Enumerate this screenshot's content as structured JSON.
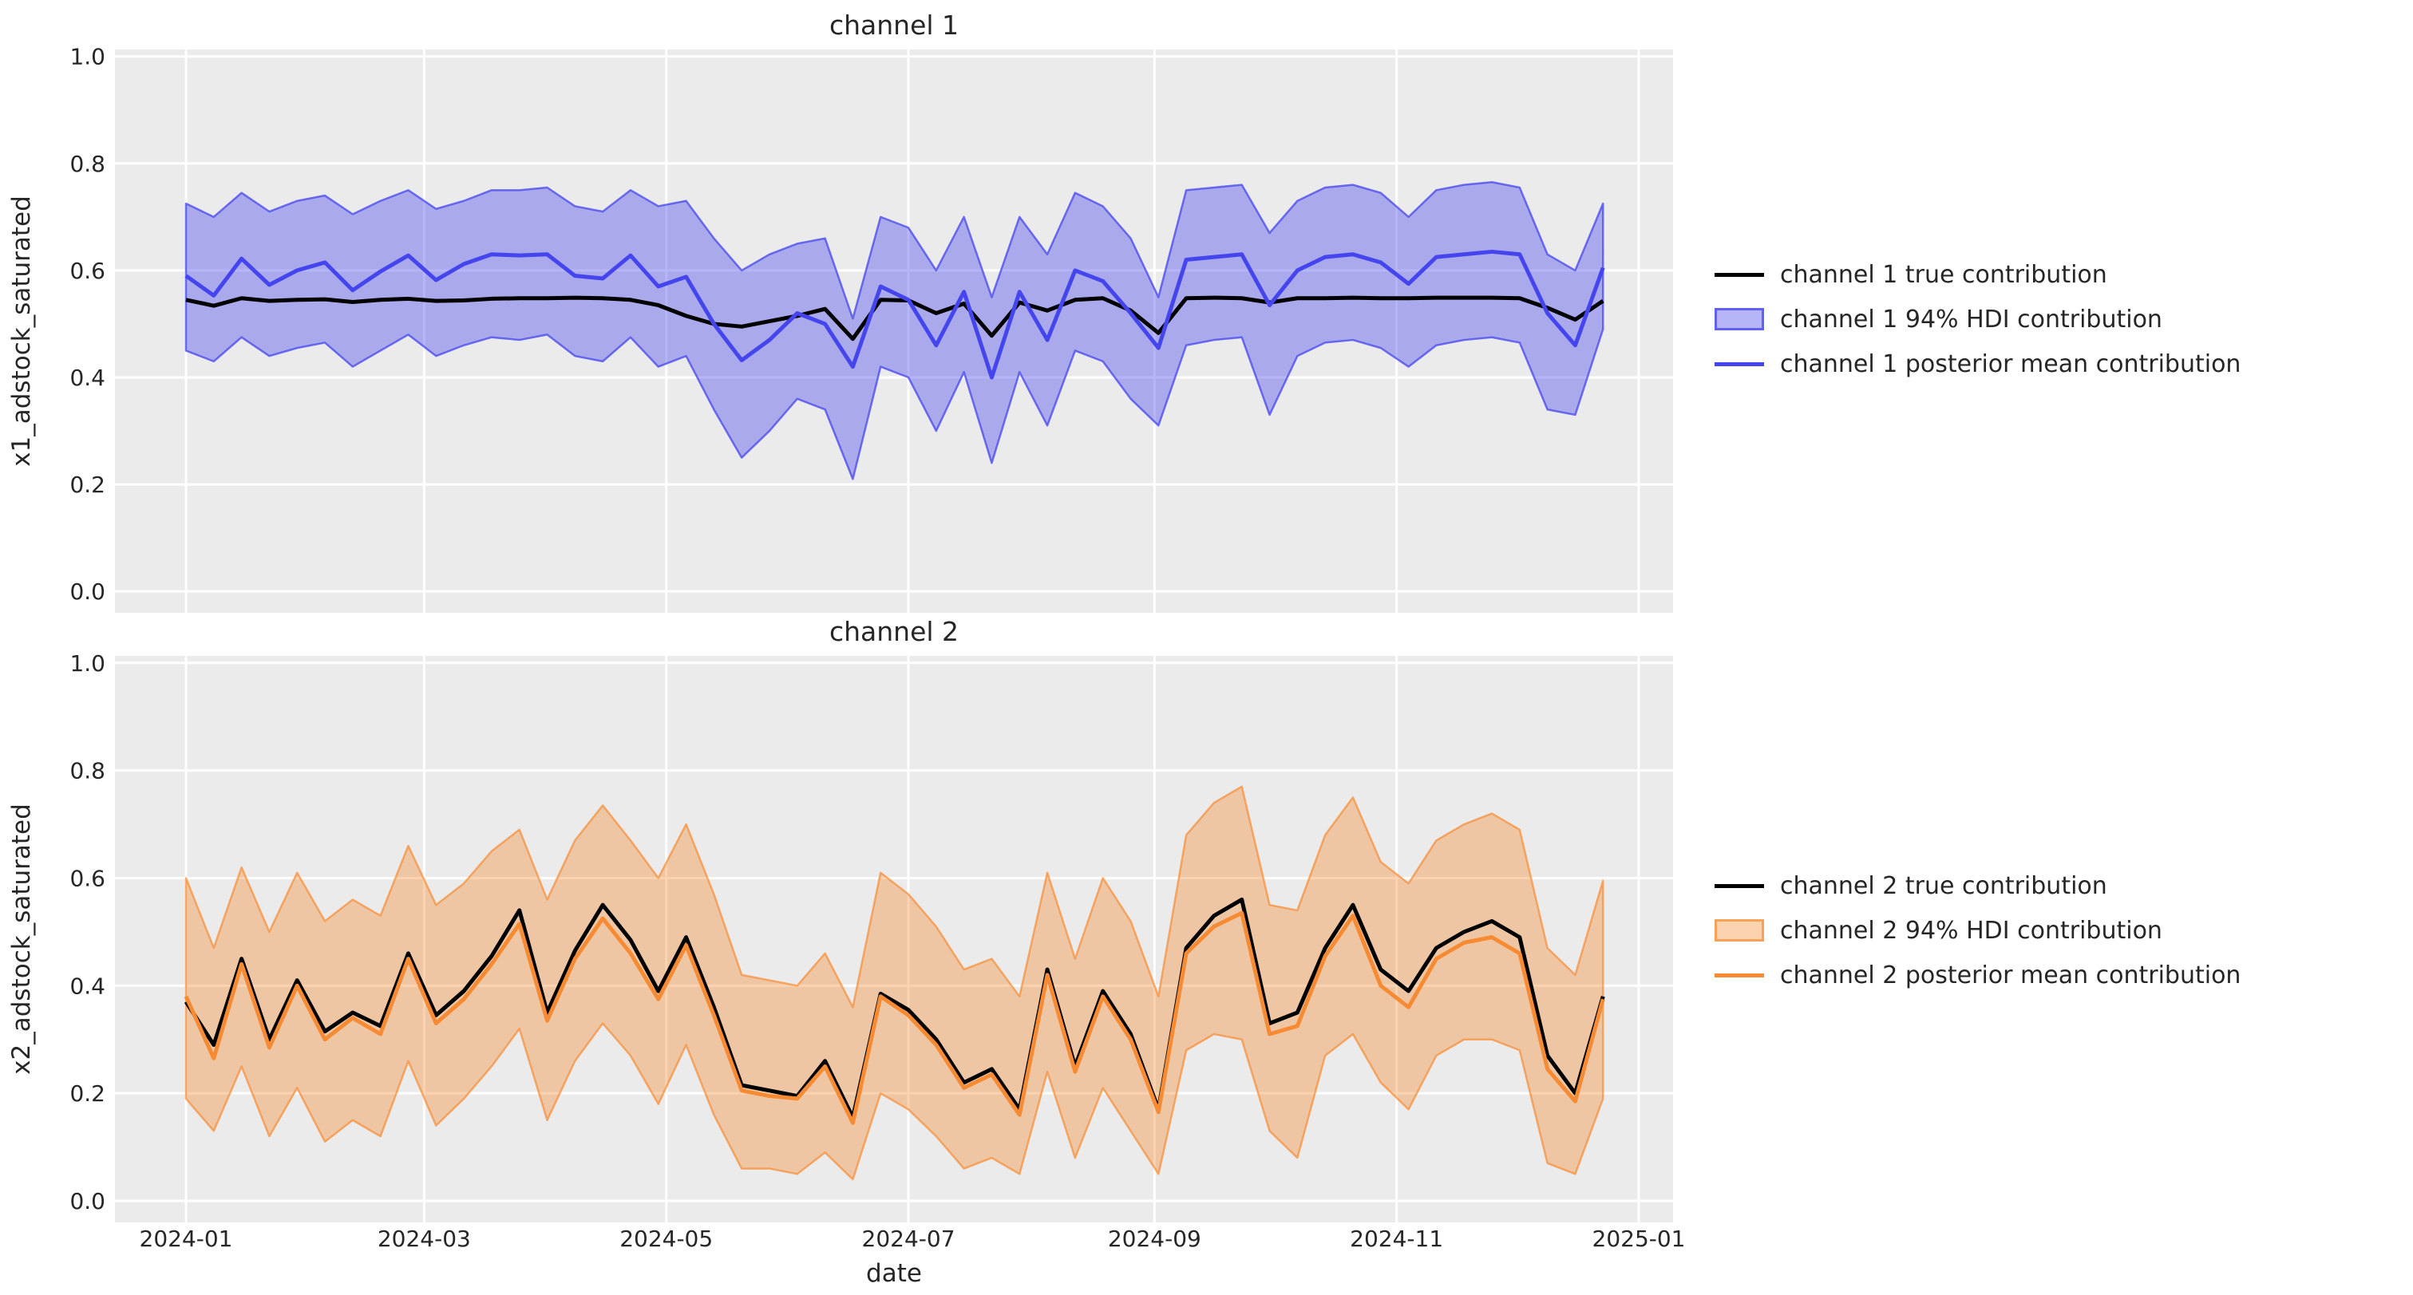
{
  "figure": {
    "background_color": "#ffffff",
    "axes_background_color": "#ebebeb",
    "grid_color": "#ffffff",
    "text_color": "#262626"
  },
  "chart_data": [
    {
      "type": "line",
      "title": "channel 1",
      "ylabel": "x1_adstock_saturated",
      "xlabel": "",
      "x_start": "2024-01-01",
      "x_step_days": 7,
      "n_points": 52,
      "ylim": [
        0.0,
        1.0
      ],
      "grid": true,
      "x_tick_labels": [
        "2024-01",
        "2024-03",
        "2024-05",
        "2024-07",
        "2024-09",
        "2024-11",
        "2025-01"
      ],
      "x_tick_days": [
        0,
        60,
        121,
        182,
        244,
        305,
        366
      ],
      "y_tick_labels": [
        "0.0",
        "0.2",
        "0.4",
        "0.6",
        "0.8",
        "1.0"
      ],
      "y_ticks": [
        0.0,
        0.2,
        0.4,
        0.6,
        0.8,
        1.0
      ],
      "show_x_tick_labels": false,
      "legend_position": "right",
      "legend": [
        "channel 1 true contribution",
        "channel 1 94% HDI contribution",
        "channel 1 posterior mean contribution"
      ],
      "colors": {
        "true_line": "#000000",
        "mean_line": "#4545ee",
        "hdi_fill": "rgba(69,69,238,0.40)",
        "hdi_edge": "rgba(69,69,238,0.75)"
      },
      "series": [
        {
          "name": "channel 1 true contribution",
          "values": [
            0.545,
            0.534,
            0.548,
            0.543,
            0.545,
            0.546,
            0.541,
            0.545,
            0.547,
            0.543,
            0.544,
            0.547,
            0.548,
            0.548,
            0.549,
            0.548,
            0.545,
            0.535,
            0.515,
            0.5,
            0.495,
            0.505,
            0.515,
            0.528,
            0.472,
            0.545,
            0.544,
            0.52,
            0.538,
            0.478,
            0.54,
            0.525,
            0.545,
            0.548,
            0.525,
            0.483,
            0.548,
            0.549,
            0.548,
            0.54,
            0.548,
            0.548,
            0.549,
            0.548,
            0.548,
            0.549,
            0.549,
            0.549,
            0.548,
            0.53,
            0.508,
            0.543
          ]
        },
        {
          "name": "channel 1 posterior mean contribution",
          "values": [
            0.59,
            0.553,
            0.622,
            0.573,
            0.6,
            0.615,
            0.563,
            0.598,
            0.628,
            0.582,
            0.612,
            0.63,
            0.628,
            0.63,
            0.59,
            0.585,
            0.628,
            0.57,
            0.588,
            0.5,
            0.432,
            0.47,
            0.52,
            0.5,
            0.42,
            0.57,
            0.545,
            0.46,
            0.56,
            0.4,
            0.56,
            0.47,
            0.6,
            0.58,
            0.52,
            0.455,
            0.62,
            0.625,
            0.63,
            0.535,
            0.6,
            0.625,
            0.63,
            0.615,
            0.575,
            0.625,
            0.63,
            0.635,
            0.63,
            0.52,
            0.46,
            0.605
          ]
        },
        {
          "name": "channel 1 94% HDI lower",
          "values": [
            0.45,
            0.43,
            0.475,
            0.44,
            0.455,
            0.465,
            0.42,
            0.45,
            0.48,
            0.44,
            0.46,
            0.475,
            0.47,
            0.48,
            0.44,
            0.43,
            0.475,
            0.42,
            0.44,
            0.34,
            0.25,
            0.3,
            0.36,
            0.34,
            0.21,
            0.42,
            0.4,
            0.3,
            0.41,
            0.24,
            0.41,
            0.31,
            0.45,
            0.43,
            0.36,
            0.31,
            0.46,
            0.47,
            0.475,
            0.33,
            0.44,
            0.465,
            0.47,
            0.455,
            0.42,
            0.46,
            0.47,
            0.475,
            0.465,
            0.34,
            0.33,
            0.49
          ]
        },
        {
          "name": "channel 1 94% HDI upper",
          "values": [
            0.725,
            0.7,
            0.745,
            0.71,
            0.73,
            0.74,
            0.705,
            0.73,
            0.75,
            0.715,
            0.73,
            0.75,
            0.75,
            0.755,
            0.72,
            0.71,
            0.75,
            0.72,
            0.73,
            0.66,
            0.6,
            0.63,
            0.65,
            0.66,
            0.51,
            0.7,
            0.68,
            0.6,
            0.7,
            0.55,
            0.7,
            0.63,
            0.745,
            0.72,
            0.66,
            0.55,
            0.75,
            0.755,
            0.76,
            0.67,
            0.73,
            0.755,
            0.76,
            0.745,
            0.7,
            0.75,
            0.76,
            0.765,
            0.755,
            0.63,
            0.6,
            0.725
          ]
        }
      ]
    },
    {
      "type": "line",
      "title": "channel 2",
      "ylabel": "x2_adstock_saturated",
      "xlabel": "date",
      "x_start": "2024-01-01",
      "x_step_days": 7,
      "n_points": 52,
      "ylim": [
        0.0,
        1.0
      ],
      "grid": true,
      "x_tick_labels": [
        "2024-01",
        "2024-03",
        "2024-05",
        "2024-07",
        "2024-09",
        "2024-11",
        "2025-01"
      ],
      "x_tick_days": [
        0,
        60,
        121,
        182,
        244,
        305,
        366
      ],
      "y_tick_labels": [
        "0.0",
        "0.2",
        "0.4",
        "0.6",
        "0.8",
        "1.0"
      ],
      "y_ticks": [
        0.0,
        0.2,
        0.4,
        0.6,
        0.8,
        1.0
      ],
      "show_x_tick_labels": true,
      "legend_position": "right",
      "legend": [
        "channel 2 true contribution",
        "channel 2 94% HDI contribution",
        "channel 2 posterior mean contribution"
      ],
      "colors": {
        "true_line": "#000000",
        "mean_line": "#f78b33",
        "hdi_fill": "rgba(247,139,51,0.38)",
        "hdi_edge": "rgba(247,139,51,0.70)"
      },
      "series": [
        {
          "name": "channel 2 true contribution",
          "values": [
            0.37,
            0.29,
            0.45,
            0.3,
            0.41,
            0.315,
            0.35,
            0.325,
            0.46,
            0.345,
            0.39,
            0.455,
            0.54,
            0.35,
            0.465,
            0.55,
            0.485,
            0.39,
            0.49,
            0.36,
            0.215,
            0.205,
            0.195,
            0.26,
            0.155,
            0.385,
            0.355,
            0.3,
            0.22,
            0.245,
            0.17,
            0.43,
            0.25,
            0.39,
            0.31,
            0.17,
            0.47,
            0.53,
            0.56,
            0.33,
            0.35,
            0.47,
            0.55,
            0.43,
            0.39,
            0.47,
            0.5,
            0.52,
            0.49,
            0.27,
            0.2,
            0.38
          ]
        },
        {
          "name": "channel 2 posterior mean contribution",
          "values": [
            0.38,
            0.265,
            0.44,
            0.285,
            0.4,
            0.3,
            0.34,
            0.31,
            0.45,
            0.33,
            0.375,
            0.44,
            0.515,
            0.335,
            0.45,
            0.525,
            0.46,
            0.375,
            0.475,
            0.345,
            0.205,
            0.195,
            0.19,
            0.25,
            0.145,
            0.38,
            0.345,
            0.29,
            0.21,
            0.235,
            0.16,
            0.42,
            0.24,
            0.38,
            0.3,
            0.165,
            0.46,
            0.51,
            0.535,
            0.31,
            0.325,
            0.455,
            0.53,
            0.4,
            0.36,
            0.45,
            0.48,
            0.49,
            0.46,
            0.245,
            0.185,
            0.375
          ]
        },
        {
          "name": "channel 2 94% HDI lower",
          "values": [
            0.19,
            0.13,
            0.25,
            0.12,
            0.21,
            0.11,
            0.15,
            0.12,
            0.26,
            0.14,
            0.19,
            0.25,
            0.32,
            0.15,
            0.26,
            0.33,
            0.27,
            0.18,
            0.29,
            0.16,
            0.06,
            0.06,
            0.05,
            0.09,
            0.04,
            0.2,
            0.17,
            0.12,
            0.06,
            0.08,
            0.05,
            0.24,
            0.08,
            0.21,
            0.13,
            0.05,
            0.28,
            0.31,
            0.3,
            0.13,
            0.08,
            0.27,
            0.31,
            0.22,
            0.17,
            0.27,
            0.3,
            0.3,
            0.28,
            0.07,
            0.05,
            0.19
          ]
        },
        {
          "name": "channel 2 94% HDI upper",
          "values": [
            0.6,
            0.47,
            0.62,
            0.5,
            0.61,
            0.52,
            0.56,
            0.53,
            0.66,
            0.55,
            0.59,
            0.65,
            0.69,
            0.56,
            0.67,
            0.735,
            0.67,
            0.6,
            0.7,
            0.57,
            0.42,
            0.41,
            0.4,
            0.46,
            0.36,
            0.61,
            0.57,
            0.51,
            0.43,
            0.45,
            0.38,
            0.61,
            0.45,
            0.6,
            0.52,
            0.38,
            0.68,
            0.74,
            0.77,
            0.55,
            0.54,
            0.68,
            0.75,
            0.63,
            0.59,
            0.67,
            0.7,
            0.72,
            0.69,
            0.47,
            0.42,
            0.595
          ]
        }
      ]
    }
  ]
}
